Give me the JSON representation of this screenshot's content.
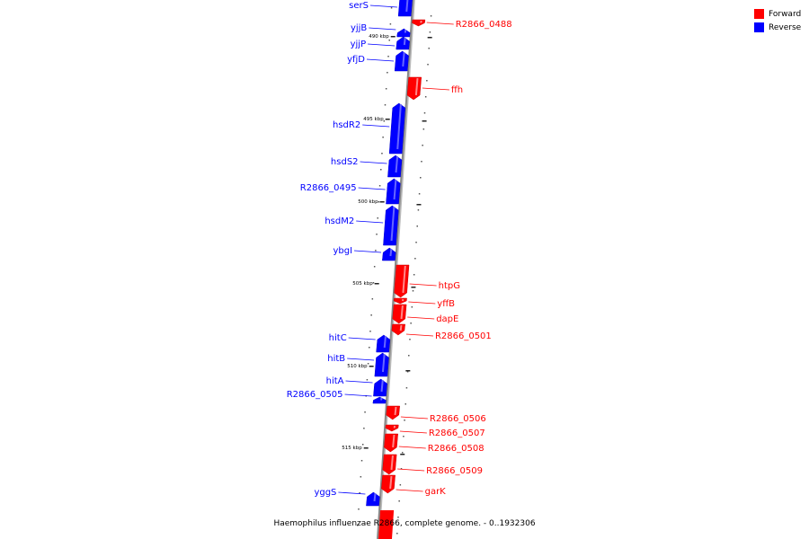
{
  "caption": "Haemophilus influenzae R2866, complete genome. - 0..1932306",
  "legend": [
    {
      "label": "Forward",
      "color": "#ff0000"
    },
    {
      "label": "Reverse",
      "color": "#0000ff"
    }
  ],
  "colors": {
    "forward": "#ff0000",
    "reverse": "#0000ff",
    "backbone": "#888888"
  },
  "kbp_marks": [
    "490 kbp",
    "495 kbp",
    "500 kbp",
    "505 kbp",
    "510 kbp",
    "515 kbp"
  ],
  "genes": [
    {
      "name": "serS",
      "strand": "reverse"
    },
    {
      "name": "R2866_0488",
      "strand": "forward"
    },
    {
      "name": "yjjB",
      "strand": "reverse"
    },
    {
      "name": "yjjP",
      "strand": "reverse"
    },
    {
      "name": "yfjD",
      "strand": "reverse"
    },
    {
      "name": "ffh",
      "strand": "forward"
    },
    {
      "name": "hsdR2",
      "strand": "reverse"
    },
    {
      "name": "hsdS2",
      "strand": "reverse"
    },
    {
      "name": "R2866_0495",
      "strand": "reverse"
    },
    {
      "name": "hsdM2",
      "strand": "reverse"
    },
    {
      "name": "ybgI",
      "strand": "reverse"
    },
    {
      "name": "htpG",
      "strand": "forward"
    },
    {
      "name": "yffB",
      "strand": "forward"
    },
    {
      "name": "dapE",
      "strand": "forward"
    },
    {
      "name": "R2866_0501",
      "strand": "forward"
    },
    {
      "name": "hitC",
      "strand": "reverse"
    },
    {
      "name": "hitB",
      "strand": "reverse"
    },
    {
      "name": "hitA",
      "strand": "reverse"
    },
    {
      "name": "R2866_0505",
      "strand": "reverse"
    },
    {
      "name": "R2866_0506",
      "strand": "forward"
    },
    {
      "name": "R2866_0507",
      "strand": "forward"
    },
    {
      "name": "R2866_0508",
      "strand": "forward"
    },
    {
      "name": "R2866_0509",
      "strand": "forward"
    },
    {
      "name": "garK",
      "strand": "forward"
    },
    {
      "name": "yggS",
      "strand": "reverse"
    }
  ]
}
